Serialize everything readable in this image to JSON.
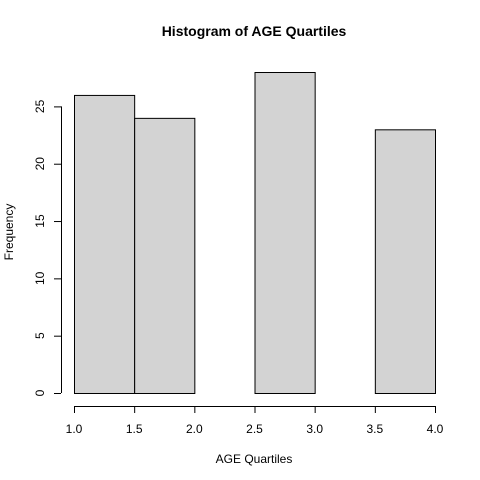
{
  "chart_data": {
    "type": "bar",
    "title": "Histogram of  AGE Quartiles",
    "xlabel": "AGE Quartiles",
    "ylabel": "Frequency",
    "bins": [
      {
        "start": 1.0,
        "end": 1.5,
        "count": 26
      },
      {
        "start": 1.5,
        "end": 2.0,
        "count": 24
      },
      {
        "start": 2.0,
        "end": 2.5,
        "count": 0
      },
      {
        "start": 2.5,
        "end": 3.0,
        "count": 28
      },
      {
        "start": 3.0,
        "end": 3.5,
        "count": 0
      },
      {
        "start": 3.5,
        "end": 4.0,
        "count": 23
      }
    ],
    "xlim": [
      1.0,
      4.0
    ],
    "ylim": [
      0,
      28
    ],
    "x_ticks": [
      "1.0",
      "1.5",
      "2.0",
      "2.5",
      "3.0",
      "3.5",
      "4.0"
    ],
    "y_ticks": [
      "0",
      "5",
      "10",
      "15",
      "20",
      "25"
    ],
    "bar_color": "#d3d3d3",
    "grid": false
  }
}
